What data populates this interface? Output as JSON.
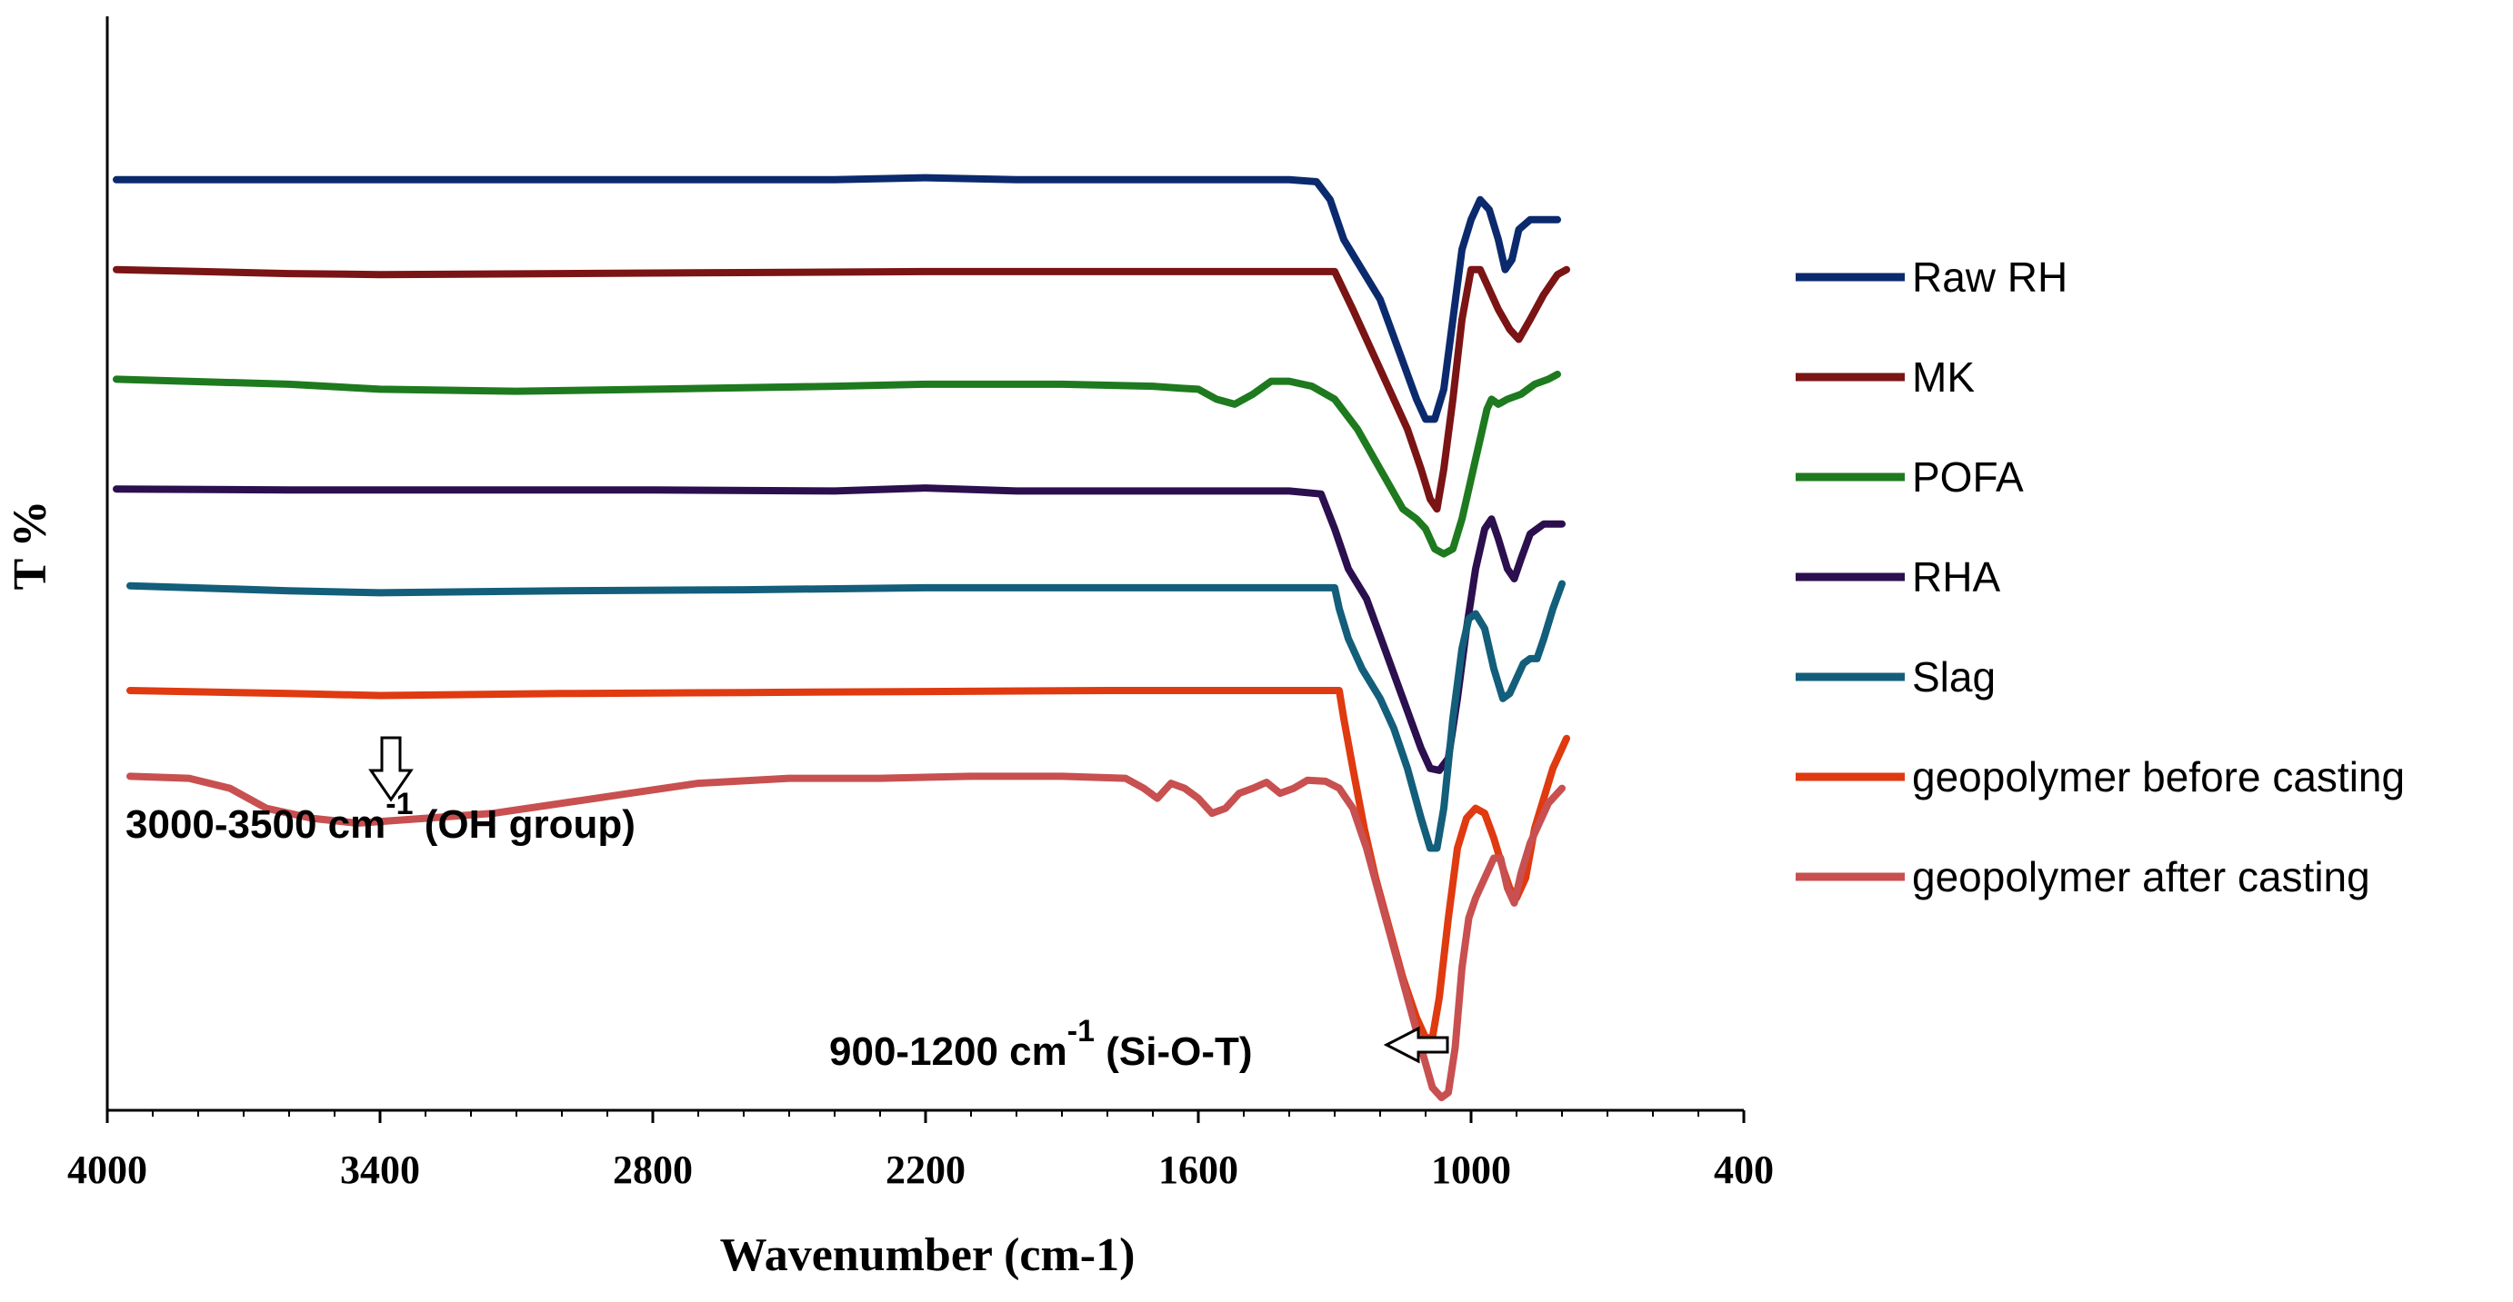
{
  "chart_data": {
    "type": "line",
    "title": "",
    "xlabel": "Wavenumber (cm-1)",
    "ylabel": "T %",
    "xlim": [
      4000,
      400
    ],
    "x_reversed": true,
    "ylim": [
      0,
      100
    ],
    "grid": false,
    "legend_position": "right",
    "x_ticks": [
      "4000",
      "3400",
      "2800",
      "2200",
      "1600",
      "1000",
      "400"
    ],
    "x_tick_values": [
      4000,
      3400,
      2800,
      2200,
      1600,
      1000,
      400
    ],
    "series": [
      {
        "name": "Raw RH",
        "color": "#0b2a6e",
        "points": [
          [
            3980,
            92
          ],
          [
            3600,
            92
          ],
          [
            3200,
            92
          ],
          [
            2800,
            92
          ],
          [
            2400,
            92
          ],
          [
            2200,
            92.2
          ],
          [
            2000,
            92
          ],
          [
            1600,
            92
          ],
          [
            1400,
            92
          ],
          [
            1340,
            91.8
          ],
          [
            1310,
            90
          ],
          [
            1280,
            86
          ],
          [
            1240,
            83
          ],
          [
            1200,
            80
          ],
          [
            1160,
            75
          ],
          [
            1120,
            70
          ],
          [
            1100,
            68
          ],
          [
            1080,
            68
          ],
          [
            1060,
            71
          ],
          [
            1040,
            78
          ],
          [
            1020,
            85
          ],
          [
            1000,
            88
          ],
          [
            980,
            90
          ],
          [
            960,
            89
          ],
          [
            940,
            86
          ],
          [
            925,
            83
          ],
          [
            910,
            84
          ],
          [
            895,
            87
          ],
          [
            870,
            88
          ],
          [
            840,
            88
          ],
          [
            810,
            88
          ]
        ]
      },
      {
        "name": "MK",
        "color": "#7b1414",
        "points": [
          [
            3980,
            83
          ],
          [
            3600,
            82.6
          ],
          [
            3400,
            82.5
          ],
          [
            3000,
            82.6
          ],
          [
            2600,
            82.7
          ],
          [
            2200,
            82.8
          ],
          [
            1800,
            82.8
          ],
          [
            1400,
            82.8
          ],
          [
            1300,
            82.8
          ],
          [
            1260,
            79
          ],
          [
            1220,
            75
          ],
          [
            1180,
            71
          ],
          [
            1140,
            67
          ],
          [
            1110,
            63
          ],
          [
            1090,
            60
          ],
          [
            1075,
            59
          ],
          [
            1060,
            63
          ],
          [
            1040,
            70
          ],
          [
            1020,
            78
          ],
          [
            1000,
            83
          ],
          [
            980,
            83
          ],
          [
            960,
            81
          ],
          [
            940,
            79
          ],
          [
            915,
            77
          ],
          [
            895,
            76
          ],
          [
            870,
            78
          ],
          [
            840,
            80.5
          ],
          [
            810,
            82.5
          ],
          [
            790,
            83
          ]
        ]
      },
      {
        "name": "POFA",
        "color": "#1e7a1e",
        "points": [
          [
            3980,
            72
          ],
          [
            3600,
            71.5
          ],
          [
            3400,
            71
          ],
          [
            3100,
            70.8
          ],
          [
            2800,
            71
          ],
          [
            2400,
            71.3
          ],
          [
            2200,
            71.5
          ],
          [
            1900,
            71.5
          ],
          [
            1700,
            71.3
          ],
          [
            1640,
            71.1
          ],
          [
            1600,
            71
          ],
          [
            1560,
            70
          ],
          [
            1520,
            69.5
          ],
          [
            1480,
            70.5
          ],
          [
            1440,
            71.8
          ],
          [
            1400,
            71.8
          ],
          [
            1350,
            71.3
          ],
          [
            1300,
            70
          ],
          [
            1250,
            67
          ],
          [
            1200,
            63
          ],
          [
            1150,
            59
          ],
          [
            1120,
            58
          ],
          [
            1100,
            57
          ],
          [
            1080,
            55
          ],
          [
            1060,
            54.5
          ],
          [
            1040,
            55
          ],
          [
            1020,
            58
          ],
          [
            1000,
            62
          ],
          [
            980,
            66
          ],
          [
            965,
            69
          ],
          [
            955,
            70
          ],
          [
            940,
            69.5
          ],
          [
            920,
            70
          ],
          [
            890,
            70.5
          ],
          [
            860,
            71.5
          ],
          [
            830,
            72
          ],
          [
            810,
            72.5
          ]
        ]
      },
      {
        "name": "RHA",
        "color": "#2b0f4e",
        "points": [
          [
            3980,
            61
          ],
          [
            3600,
            60.9
          ],
          [
            3200,
            60.9
          ],
          [
            2800,
            60.9
          ],
          [
            2400,
            60.8
          ],
          [
            2200,
            61.1
          ],
          [
            2000,
            60.8
          ],
          [
            1600,
            60.8
          ],
          [
            1400,
            60.8
          ],
          [
            1330,
            60.5
          ],
          [
            1300,
            57
          ],
          [
            1270,
            53
          ],
          [
            1230,
            50
          ],
          [
            1190,
            45
          ],
          [
            1150,
            40
          ],
          [
            1110,
            35
          ],
          [
            1090,
            33
          ],
          [
            1070,
            32.8
          ],
          [
            1050,
            34
          ],
          [
            1030,
            40
          ],
          [
            1010,
            47
          ],
          [
            990,
            53
          ],
          [
            970,
            57
          ],
          [
            955,
            58
          ],
          [
            940,
            56
          ],
          [
            920,
            53
          ],
          [
            905,
            52
          ],
          [
            890,
            54
          ],
          [
            870,
            56.5
          ],
          [
            840,
            57.5
          ],
          [
            800,
            57.5
          ]
        ]
      },
      {
        "name": "Slag",
        "color": "#135e7a",
        "points": [
          [
            3950,
            51.3
          ],
          [
            3600,
            50.8
          ],
          [
            3400,
            50.6
          ],
          [
            3000,
            50.8
          ],
          [
            2600,
            50.9
          ],
          [
            2200,
            51.1
          ],
          [
            1800,
            51.1
          ],
          [
            1400,
            51.1
          ],
          [
            1300,
            51.1
          ],
          [
            1290,
            49
          ],
          [
            1270,
            46
          ],
          [
            1240,
            43
          ],
          [
            1200,
            40
          ],
          [
            1170,
            37
          ],
          [
            1140,
            33
          ],
          [
            1110,
            28
          ],
          [
            1090,
            25
          ],
          [
            1075,
            25
          ],
          [
            1060,
            29
          ],
          [
            1040,
            38
          ],
          [
            1020,
            45
          ],
          [
            1005,
            48
          ],
          [
            990,
            48.5
          ],
          [
            970,
            47
          ],
          [
            950,
            43
          ],
          [
            930,
            40
          ],
          [
            915,
            40.5
          ],
          [
            900,
            42
          ],
          [
            885,
            43.5
          ],
          [
            870,
            44
          ],
          [
            855,
            44
          ],
          [
            840,
            46
          ],
          [
            820,
            49
          ],
          [
            800,
            51.5
          ]
        ]
      },
      {
        "name": "geopolymer before casting",
        "color": "#e03a10",
        "points": [
          [
            3950,
            40.8
          ],
          [
            3600,
            40.5
          ],
          [
            3400,
            40.3
          ],
          [
            3000,
            40.5
          ],
          [
            2600,
            40.6
          ],
          [
            2200,
            40.7
          ],
          [
            1800,
            40.8
          ],
          [
            1400,
            40.8
          ],
          [
            1290,
            40.8
          ],
          [
            1280,
            38
          ],
          [
            1260,
            33
          ],
          [
            1235,
            27
          ],
          [
            1210,
            22
          ],
          [
            1180,
            17
          ],
          [
            1150,
            12
          ],
          [
            1120,
            8
          ],
          [
            1100,
            6
          ],
          [
            1085,
            6
          ],
          [
            1070,
            10
          ],
          [
            1050,
            18
          ],
          [
            1030,
            25
          ],
          [
            1010,
            28
          ],
          [
            990,
            29
          ],
          [
            970,
            28.5
          ],
          [
            950,
            26
          ],
          [
            930,
            23
          ],
          [
            915,
            21
          ],
          [
            900,
            20
          ],
          [
            880,
            22
          ],
          [
            860,
            27
          ],
          [
            840,
            30
          ],
          [
            820,
            33
          ],
          [
            790,
            36
          ]
        ]
      },
      {
        "name": "geopolymer after casting",
        "color": "#c85050",
        "points": [
          [
            3950,
            32.2
          ],
          [
            3820,
            32
          ],
          [
            3730,
            31
          ],
          [
            3650,
            29
          ],
          [
            3550,
            28
          ],
          [
            3450,
            27.5
          ],
          [
            3300,
            28
          ],
          [
            3150,
            28.5
          ],
          [
            3000,
            29.5
          ],
          [
            2850,
            30.5
          ],
          [
            2700,
            31.5
          ],
          [
            2500,
            32
          ],
          [
            2300,
            32
          ],
          [
            2100,
            32.2
          ],
          [
            1900,
            32.2
          ],
          [
            1760,
            32
          ],
          [
            1720,
            31
          ],
          [
            1690,
            30
          ],
          [
            1660,
            31.5
          ],
          [
            1630,
            31
          ],
          [
            1600,
            30
          ],
          [
            1570,
            28.5
          ],
          [
            1540,
            29
          ],
          [
            1510,
            30.5
          ],
          [
            1480,
            31
          ],
          [
            1450,
            31.6
          ],
          [
            1420,
            30.5
          ],
          [
            1390,
            31
          ],
          [
            1360,
            31.8
          ],
          [
            1320,
            31.7
          ],
          [
            1290,
            31
          ],
          [
            1260,
            29
          ],
          [
            1230,
            25
          ],
          [
            1200,
            20
          ],
          [
            1170,
            15
          ],
          [
            1140,
            10
          ],
          [
            1110,
            5
          ],
          [
            1085,
            1
          ],
          [
            1065,
            0
          ],
          [
            1050,
            0.5
          ],
          [
            1035,
            5
          ],
          [
            1020,
            13
          ],
          [
            1005,
            18
          ],
          [
            990,
            20
          ],
          [
            970,
            22
          ],
          [
            950,
            24
          ],
          [
            935,
            24
          ],
          [
            920,
            21
          ],
          [
            905,
            19.5
          ],
          [
            890,
            22.5
          ],
          [
            870,
            25.5
          ],
          [
            850,
            27.5
          ],
          [
            830,
            29.5
          ],
          [
            800,
            31
          ]
        ]
      }
    ],
    "annotations": [
      {
        "text": "3000-3500 cm",
        "superscript": "-1",
        "suffix": " (OH group)",
        "points_to_x": 3400,
        "arrow": "down"
      },
      {
        "text": "900-1200 cm",
        "superscript": "-1",
        "suffix": " (Si-O-T)",
        "points_to_x": 1040,
        "arrow": "left"
      }
    ]
  }
}
